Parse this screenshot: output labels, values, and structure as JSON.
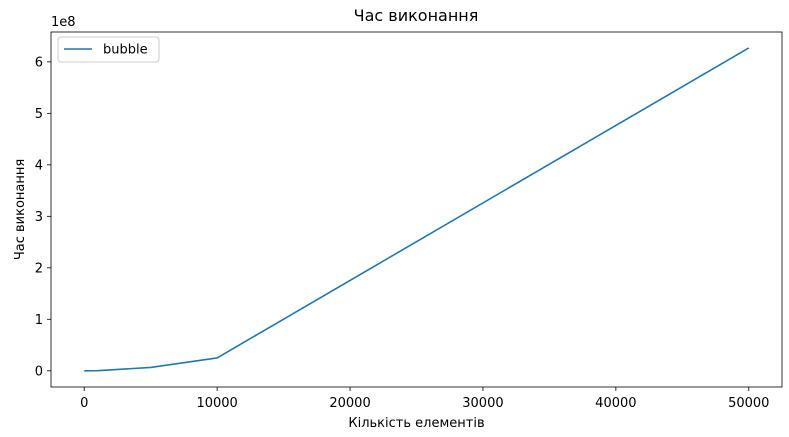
{
  "chart_data": {
    "type": "line",
    "title": "Час виконання",
    "xlabel": "Кількість елементів",
    "ylabel": "Час виконання",
    "y_offset_label": "1e8",
    "y_scale": 100000000,
    "xlim": [
      -2500,
      52500
    ],
    "ylim": [
      -31500000,
      658000000
    ],
    "x_ticks": [
      0,
      10000,
      20000,
      30000,
      40000,
      50000
    ],
    "x_tick_labels": [
      "0",
      "10000",
      "20000",
      "30000",
      "40000",
      "50000"
    ],
    "y_ticks": [
      0,
      100000000,
      200000000,
      300000000,
      400000000,
      500000000,
      600000000
    ],
    "y_tick_labels": [
      "0",
      "1",
      "2",
      "3",
      "4",
      "5",
      "6"
    ],
    "grid": false,
    "legend_position": "top-left",
    "series": [
      {
        "name": "bubble",
        "color": "#1f77b4",
        "x": [
          0,
          1000,
          5000,
          10000,
          50000
        ],
        "y": [
          0,
          250000,
          6500000,
          25000000,
          627000000
        ]
      }
    ]
  }
}
